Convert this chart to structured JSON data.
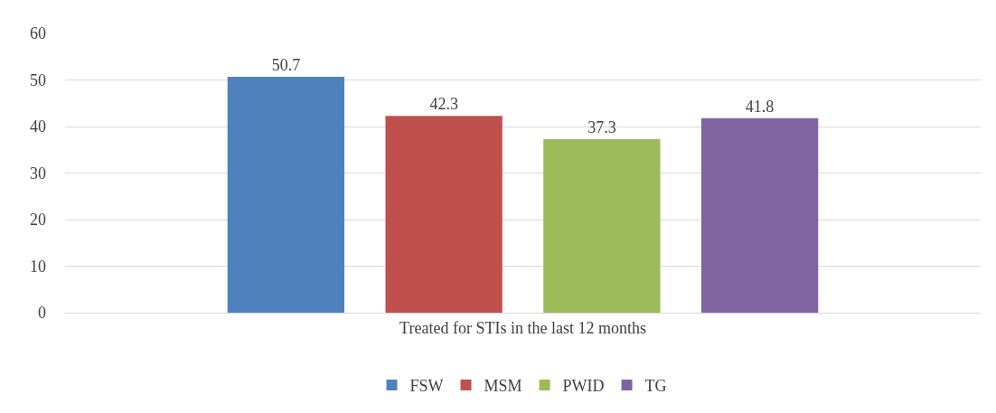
{
  "chart_data": {
    "type": "bar",
    "categories": [
      "Treated for STIs in the last 12 months"
    ],
    "series": [
      {
        "name": "FSW",
        "color": "#4f81bd",
        "values": [
          50.7
        ]
      },
      {
        "name": "MSM",
        "color": "#c0504d",
        "values": [
          42.3
        ]
      },
      {
        "name": "PWID",
        "color": "#9bbb59",
        "values": [
          37.3
        ]
      },
      {
        "name": "TG",
        "color": "#8064a2",
        "values": [
          41.8
        ]
      }
    ],
    "ylim": [
      0,
      60
    ],
    "yticks": [
      0,
      10,
      20,
      30,
      40,
      50,
      60
    ],
    "grid": "y",
    "legend": "bottom",
    "data_labels": true
  }
}
